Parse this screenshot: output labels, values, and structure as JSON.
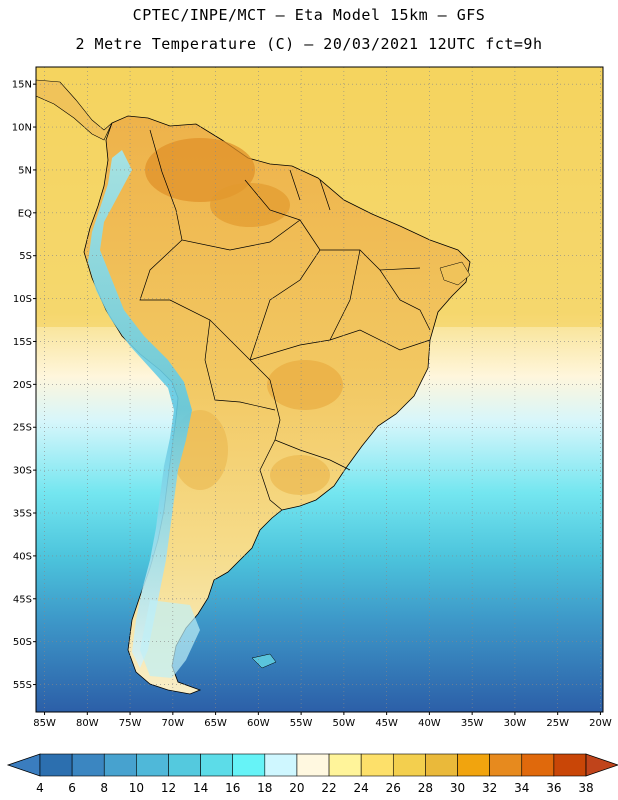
{
  "header": {
    "line1": "CPTEC/INPE/MCT –  Eta Model 15km – GFS",
    "line2": "2 Metre Temperature (C) – 20/03/2021 12UTC fct=9h"
  },
  "map": {
    "lat_labels": [
      "15N",
      "10N",
      "5N",
      "EQ",
      "5S",
      "10S",
      "15S",
      "20S",
      "25S",
      "30S",
      "35S",
      "40S",
      "45S",
      "50S",
      "55S"
    ],
    "lon_labels": [
      "85W",
      "80W",
      "75W",
      "70W",
      "65W",
      "60W",
      "55W",
      "50W",
      "45W",
      "40W",
      "35W",
      "30W",
      "25W",
      "20W"
    ]
  },
  "colorbar": {
    "labels": [
      "4",
      "6",
      "8",
      "10",
      "12",
      "14",
      "16",
      "18",
      "20",
      "22",
      "24",
      "26",
      "28",
      "30",
      "32",
      "34",
      "36",
      "38"
    ],
    "colors": [
      "#2c6faf",
      "#3b86c1",
      "#47a2cf",
      "#4fb8d9",
      "#54c9de",
      "#5cdce8",
      "#66f3f7",
      "#cff7ff",
      "#fff8e0",
      "#fff49a",
      "#fde06a",
      "#f3cf4e",
      "#eab93a",
      "#f1a40e",
      "#e78a1e",
      "#e0690c",
      "#c94607"
    ],
    "left_arrow_color": "#3a7dbf",
    "right_arrow_color": "#c0441b"
  }
}
